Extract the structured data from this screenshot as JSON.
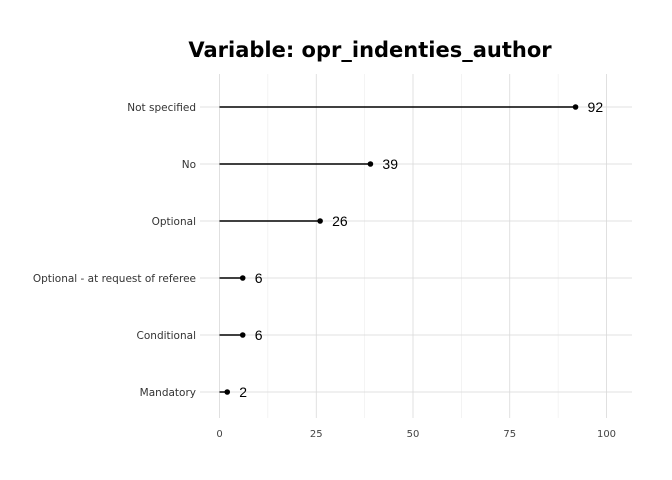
{
  "chart_data": {
    "type": "lollipop",
    "title": "Variable: opr_indenties_author",
    "xlabel": "",
    "ylabel": "",
    "categories": [
      "Not specified",
      "No",
      "Optional",
      "Optional - at request of referee",
      "Conditional",
      "Mandatory"
    ],
    "values": [
      92,
      39,
      26,
      6,
      6,
      2
    ],
    "xlim": [
      0,
      106
    ],
    "xticks": [
      0,
      25,
      50,
      75,
      100
    ],
    "grid": true,
    "legend": "none",
    "colors": {
      "stem": "#000000",
      "point": "#000000",
      "grid_major": "#d9d9d9",
      "grid_minor": "#ececec"
    }
  }
}
